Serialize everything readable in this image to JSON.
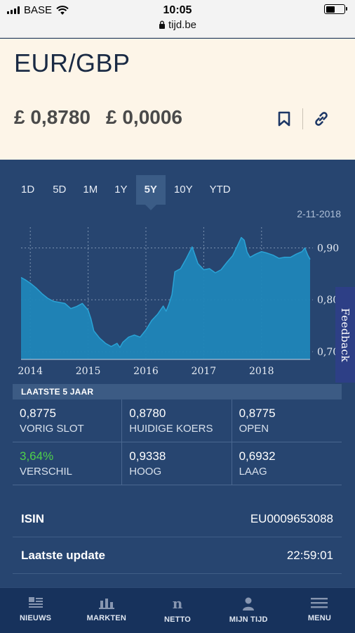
{
  "status_bar": {
    "carrier": "BASE",
    "time": "10:05",
    "url": "tijd.be"
  },
  "header": {
    "title": "EUR/GBP",
    "price": "£ 0,8780",
    "change": "£ 0,0006",
    "bookmark_icon": "bookmark-icon",
    "link_icon": "link-icon"
  },
  "tabs": [
    {
      "label": "1D"
    },
    {
      "label": "5D"
    },
    {
      "label": "1M"
    },
    {
      "label": "1Y"
    },
    {
      "label": "5Y",
      "active": true
    },
    {
      "label": "10Y"
    },
    {
      "label": "YTD"
    }
  ],
  "chart_date": "2-11-2018",
  "chart_data": {
    "type": "area",
    "x_tick_labels": [
      "2014",
      "2015",
      "2016",
      "2017",
      "2018"
    ],
    "y_tick_labels": [
      "0,70",
      "0,80",
      "0,90"
    ],
    "ylim": [
      0.685,
      0.94
    ],
    "xlim": [
      2013.84,
      2018.84
    ],
    "grid": true,
    "color": "#1f86b8",
    "x": [
      2013.84,
      2013.92,
      2014.0,
      2014.1,
      2014.2,
      2014.3,
      2014.4,
      2014.5,
      2014.6,
      2014.7,
      2014.8,
      2014.9,
      2015.0,
      2015.05,
      2015.1,
      2015.2,
      2015.3,
      2015.4,
      2015.5,
      2015.55,
      2015.6,
      2015.7,
      2015.8,
      2015.9,
      2016.0,
      2016.1,
      2016.2,
      2016.3,
      2016.35,
      2016.4,
      2016.45,
      2016.5,
      2016.6,
      2016.7,
      2016.8,
      2016.9,
      2017.0,
      2017.1,
      2017.2,
      2017.3,
      2017.4,
      2017.5,
      2017.6,
      2017.65,
      2017.7,
      2017.75,
      2017.8,
      2017.9,
      2018.0,
      2018.1,
      2018.2,
      2018.3,
      2018.4,
      2018.5,
      2018.6,
      2018.7,
      2018.75,
      2018.8,
      2018.84
    ],
    "values": [
      0.843,
      0.838,
      0.832,
      0.823,
      0.812,
      0.803,
      0.797,
      0.795,
      0.793,
      0.783,
      0.787,
      0.793,
      0.78,
      0.763,
      0.74,
      0.726,
      0.716,
      0.71,
      0.716,
      0.708,
      0.718,
      0.728,
      0.732,
      0.728,
      0.742,
      0.76,
      0.772,
      0.788,
      0.778,
      0.792,
      0.81,
      0.854,
      0.86,
      0.88,
      0.902,
      0.87,
      0.858,
      0.86,
      0.852,
      0.858,
      0.872,
      0.885,
      0.908,
      0.92,
      0.915,
      0.892,
      0.882,
      0.888,
      0.893,
      0.89,
      0.886,
      0.88,
      0.882,
      0.882,
      0.888,
      0.893,
      0.9,
      0.886,
      0.878
    ]
  },
  "feedback_label": "Feedback",
  "stats": {
    "title": "LAATSTE 5 JAAR",
    "rows": [
      [
        {
          "value": "0,8775",
          "label": "VORIG SLOT"
        },
        {
          "value": "0,8780",
          "label": "HUIDIGE KOERS"
        },
        {
          "value": "0,8775",
          "label": "OPEN"
        }
      ],
      [
        {
          "value": "3,64%",
          "label": "VERSCHIL",
          "positive": true
        },
        {
          "value": "0,9338",
          "label": "HOOG"
        },
        {
          "value": "0,6932",
          "label": "LAAG"
        }
      ]
    ]
  },
  "info": [
    {
      "key": "ISIN",
      "value": "EU0009653088"
    },
    {
      "key": "Laatste update",
      "value": "22:59:01"
    }
  ],
  "nav": [
    {
      "label": "NIEUWS",
      "icon": "news-icon"
    },
    {
      "label": "MARKTEN",
      "icon": "bar-chart-icon"
    },
    {
      "label": "NETTO",
      "icon": "netto-n-icon"
    },
    {
      "label": "MIJN TIJD",
      "icon": "user-icon"
    },
    {
      "label": "MENU",
      "icon": "menu-icon"
    }
  ]
}
